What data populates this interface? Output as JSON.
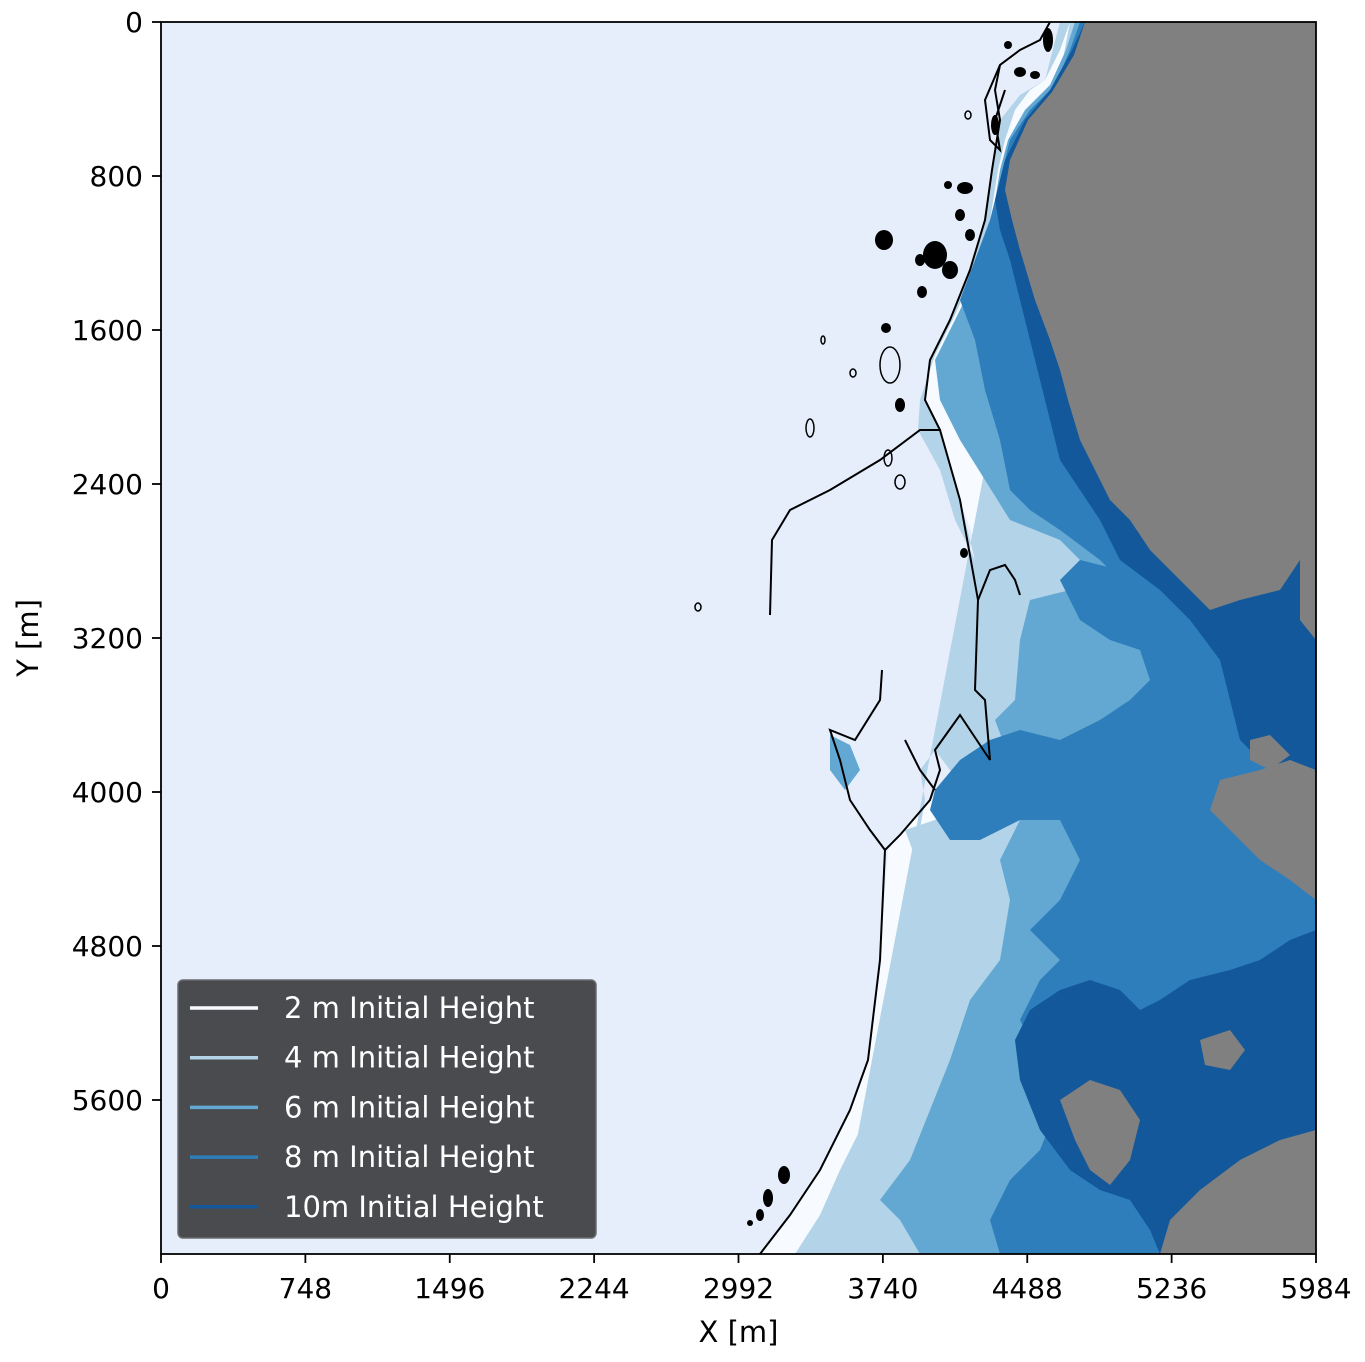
{
  "chart_data": {
    "type": "contour-map",
    "xlabel": "X [m]",
    "ylabel": "Y [m]",
    "xlim": [
      0,
      5984
    ],
    "ylim": [
      6400,
      0
    ],
    "y_axis_inverted": true,
    "x_ticks": [
      0,
      748,
      1496,
      2244,
      2992,
      3740,
      4488,
      5236,
      5984
    ],
    "x_tick_labels": [
      "0",
      "748",
      "1496",
      "2244",
      "2992",
      "3740",
      "4488",
      "5236",
      "5984"
    ],
    "y_ticks": [
      0,
      800,
      1600,
      2400,
      3200,
      4000,
      4800,
      5600
    ],
    "y_tick_labels": [
      "0",
      "800",
      "1600",
      "2400",
      "3200",
      "4000",
      "4800",
      "5600"
    ],
    "legend_position": "lower-left",
    "legend_style": "dark",
    "series": [
      {
        "name": "2 m Initial Height",
        "color": "#f7fbff",
        "level_m": 2
      },
      {
        "name": "4 m Initial Height",
        "color": "#b3d3e8",
        "level_m": 4
      },
      {
        "name": "6 m Initial Height",
        "color": "#62a8d3",
        "level_m": 6
      },
      {
        "name": "8 m Initial Height",
        "color": "#2e7ebc",
        "level_m": 8
      },
      {
        "name": "10m Initial Height",
        "color": "#12589b",
        "level_m": 10
      }
    ],
    "colors": {
      "water": "#e6eefc",
      "land": "#808080",
      "coastline": "#000000",
      "legend_bg": "#4a4b4f"
    }
  }
}
